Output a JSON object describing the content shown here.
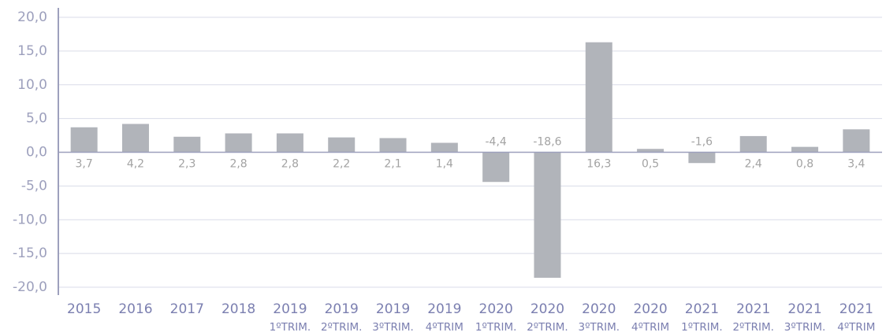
{
  "chart_data": {
    "type": "bar",
    "categories": [
      "2015",
      "2016",
      "2017",
      "2018",
      "2019",
      "2019",
      "2019",
      "2019",
      "2020",
      "2020",
      "2020",
      "2020",
      "2021",
      "2021",
      "2021",
      "2021"
    ],
    "category_sublabels": [
      null,
      null,
      null,
      null,
      "1ºTRIM.",
      "2ºTRIM.",
      "3ºTRIM.",
      "4ºTRIM",
      "1ºTRIM.",
      "2ºTRIM.",
      "3ºTRIM.",
      "4ºTRIM",
      "1ºTRIM.",
      "2ºTRIM.",
      "3ºTRIM.",
      "4ºTRIM"
    ],
    "values": [
      3.7,
      4.2,
      2.3,
      2.8,
      2.8,
      2.2,
      2.1,
      1.4,
      -4.4,
      -18.6,
      16.3,
      0.5,
      -1.6,
      2.4,
      0.8,
      3.4
    ],
    "value_labels": [
      "3,7",
      "4,2",
      "2,3",
      "2,8",
      "2,8",
      "2,2",
      "2,1",
      "1,4",
      "-4,4",
      "-18,6",
      "16,3",
      "0,5",
      "-1,6",
      "2,4",
      "0,8",
      "3,4"
    ],
    "color": "#b1b4ba",
    "ylim": [
      -20,
      20
    ],
    "yticks": [
      {
        "value": -20,
        "label": "-20,0"
      },
      {
        "value": -15,
        "label": "-15,0"
      },
      {
        "value": -10,
        "label": "-10,0"
      },
      {
        "value": -5,
        "label": "-5,0"
      },
      {
        "value": 0,
        "label": "0,0"
      },
      {
        "value": 5,
        "label": "5,0"
      },
      {
        "value": 10,
        "label": "10,0"
      },
      {
        "value": 15,
        "label": "15,0"
      },
      {
        "value": 20,
        "label": "20,0"
      }
    ],
    "grid": true
  }
}
